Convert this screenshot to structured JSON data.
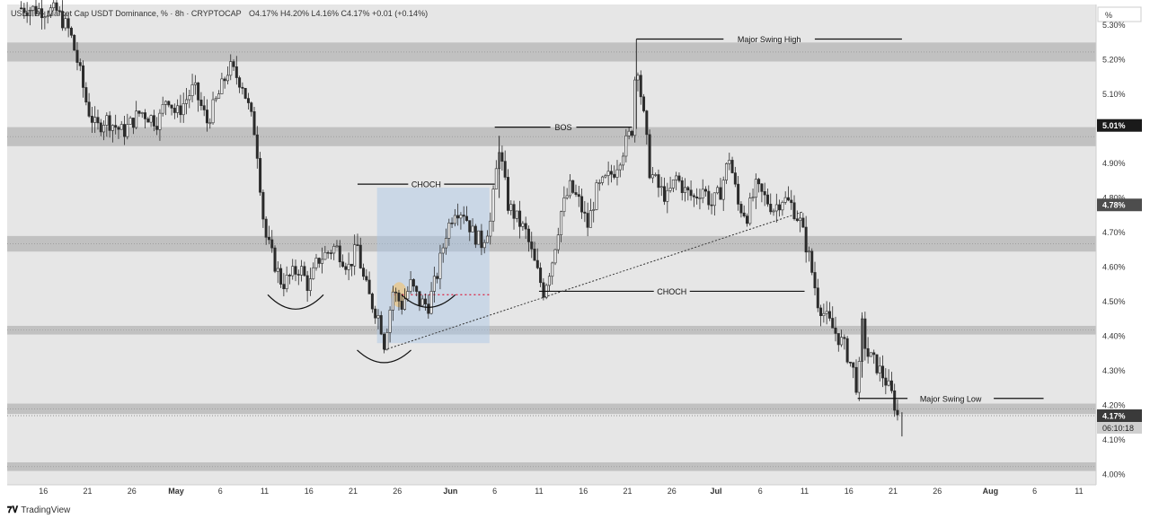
{
  "header": {
    "symbol_line": "USDT.D · Market Cap USDT Dominance, % · 8h · CRYPTOCAP",
    "ohlc": "O4.17% H4.20% L4.16% C4.17% +0.01 (+0.14%)"
  },
  "axis_unit": "%",
  "price_badges": {
    "level": "5.01%",
    "prev": "4.78%",
    "last": "4.17%",
    "countdown": "06:10:18"
  },
  "branding": "TradingView",
  "colors": {
    "background": "#e6e6e6",
    "zone": "#b4b4b4",
    "candle": "#2b2b2b",
    "annotation": "#111111",
    "highlight_box": "#a9c6e6",
    "dotted_level": "#d9304f"
  },
  "chart_data": {
    "type": "candlestick",
    "ylim": [
      3.97,
      5.36
    ],
    "y_ticks": [
      "5.30%",
      "5.20%",
      "5.10%",
      "4.90%",
      "4.80%",
      "4.70%",
      "4.60%",
      "4.50%",
      "4.40%",
      "4.30%",
      "4.20%",
      "4.10%",
      "4.00%"
    ],
    "y_tick_values": [
      5.3,
      5.2,
      5.1,
      4.9,
      4.8,
      4.7,
      4.6,
      4.5,
      4.4,
      4.3,
      4.2,
      4.1,
      4.0
    ],
    "x_ticks": [
      "16",
      "21",
      "26",
      "May",
      "6",
      "11",
      "16",
      "21",
      "26",
      "Jun",
      "6",
      "11",
      "16",
      "21",
      "26",
      "Jul",
      "6",
      "11",
      "16",
      "21",
      "26",
      "Aug",
      "6",
      "11"
    ],
    "x_tick_days": [
      -15,
      -10,
      -5,
      0,
      5,
      10,
      15,
      20,
      25,
      31,
      36,
      41,
      46,
      51,
      56,
      61,
      66,
      71,
      76,
      81,
      86,
      92,
      97,
      102
    ],
    "zones": [
      {
        "lo": 5.195,
        "hi": 5.25
      },
      {
        "lo": 4.95,
        "hi": 5.005
      },
      {
        "lo": 4.645,
        "hi": 4.69
      },
      {
        "lo": 4.405,
        "hi": 4.43
      },
      {
        "lo": 4.175,
        "hi": 4.205
      },
      {
        "lo": 4.01,
        "hi": 4.035
      }
    ],
    "path": [
      [
        -17.5,
        5.35
      ],
      [
        -13.5,
        5.34
      ],
      [
        -12,
        5.28
      ],
      [
        -11,
        5.18
      ],
      [
        -10,
        5.06
      ],
      [
        -9,
        5.0
      ],
      [
        -8,
        5.03
      ],
      [
        -6,
        4.99
      ],
      [
        -4,
        5.05
      ],
      [
        -2,
        5.02
      ],
      [
        -1,
        5.1
      ],
      [
        0,
        5.04
      ],
      [
        2,
        5.12
      ],
      [
        3.5,
        5.02
      ],
      [
        5,
        5.11
      ],
      [
        6,
        5.18
      ],
      [
        7.5,
        5.13
      ],
      [
        9,
        4.98
      ],
      [
        10,
        4.7
      ],
      [
        11,
        4.62
      ],
      [
        12,
        4.55
      ],
      [
        14,
        4.6
      ],
      [
        15,
        4.54
      ],
      [
        16,
        4.62
      ],
      [
        18,
        4.66
      ],
      [
        19.5,
        4.6
      ],
      [
        20.5,
        4.66
      ],
      [
        21,
        4.58
      ],
      [
        22,
        4.5
      ],
      [
        23,
        4.45
      ],
      [
        23.5,
        4.38
      ],
      [
        24.5,
        4.53
      ],
      [
        25.5,
        4.49
      ],
      [
        26.5,
        4.55
      ],
      [
        27.5,
        4.5
      ],
      [
        28.5,
        4.49
      ],
      [
        29.5,
        4.58
      ],
      [
        30.5,
        4.7
      ],
      [
        31.5,
        4.77
      ],
      [
        32.5,
        4.76
      ],
      [
        33.5,
        4.7
      ],
      [
        34.5,
        4.67
      ],
      [
        35.5,
        4.73
      ],
      [
        36.5,
        4.95
      ],
      [
        37.5,
        4.78
      ],
      [
        38.5,
        4.74
      ],
      [
        39.5,
        4.7
      ],
      [
        40.5,
        4.61
      ],
      [
        41.5,
        4.53
      ],
      [
        42.5,
        4.62
      ],
      [
        43.5,
        4.76
      ],
      [
        44.5,
        4.83
      ],
      [
        45.5,
        4.79
      ],
      [
        46.5,
        4.72
      ],
      [
        47.5,
        4.82
      ],
      [
        48.5,
        4.85
      ],
      [
        49.5,
        4.88
      ],
      [
        50.5,
        4.94
      ],
      [
        51.5,
        5.0
      ],
      [
        52,
        5.22
      ],
      [
        52.5,
        5.1
      ],
      [
        53,
        5.0
      ],
      [
        53.5,
        4.88
      ],
      [
        54.5,
        4.83
      ],
      [
        55.5,
        4.8
      ],
      [
        56.5,
        4.86
      ],
      [
        57.5,
        4.82
      ],
      [
        58.5,
        4.8
      ],
      [
        59.5,
        4.83
      ],
      [
        60.5,
        4.78
      ],
      [
        61.5,
        4.82
      ],
      [
        62.5,
        4.92
      ],
      [
        63.5,
        4.78
      ],
      [
        64.5,
        4.75
      ],
      [
        65.5,
        4.83
      ],
      [
        66.5,
        4.8
      ],
      [
        67.5,
        4.77
      ],
      [
        68.5,
        4.8
      ],
      [
        69.5,
        4.78
      ],
      [
        70.5,
        4.73
      ],
      [
        71.5,
        4.63
      ],
      [
        72.5,
        4.5
      ],
      [
        73.5,
        4.45
      ],
      [
        74.5,
        4.41
      ],
      [
        75.5,
        4.37
      ],
      [
        76.5,
        4.3
      ],
      [
        77,
        4.24
      ],
      [
        77.5,
        4.43
      ],
      [
        78,
        4.35
      ],
      [
        79,
        4.32
      ],
      [
        80,
        4.28
      ],
      [
        81,
        4.22
      ],
      [
        81.5,
        4.17
      ]
    ],
    "structure_lines": [
      {
        "label": "Major Swing High",
        "x0": 52,
        "x1": 82,
        "y": 5.26
      },
      {
        "label": "BOS",
        "x0": 36,
        "x1": 51.5,
        "y": 5.005
      },
      {
        "label": "CHOCH",
        "x0": 20.5,
        "x1": 36,
        "y": 4.84
      },
      {
        "label": "CHOCH",
        "x0": 41,
        "x1": 71,
        "y": 4.53
      },
      {
        "label": "Major Swing Low",
        "x0": 77,
        "x1": 98,
        "y": 4.22
      }
    ],
    "current_level": 4.17
  }
}
